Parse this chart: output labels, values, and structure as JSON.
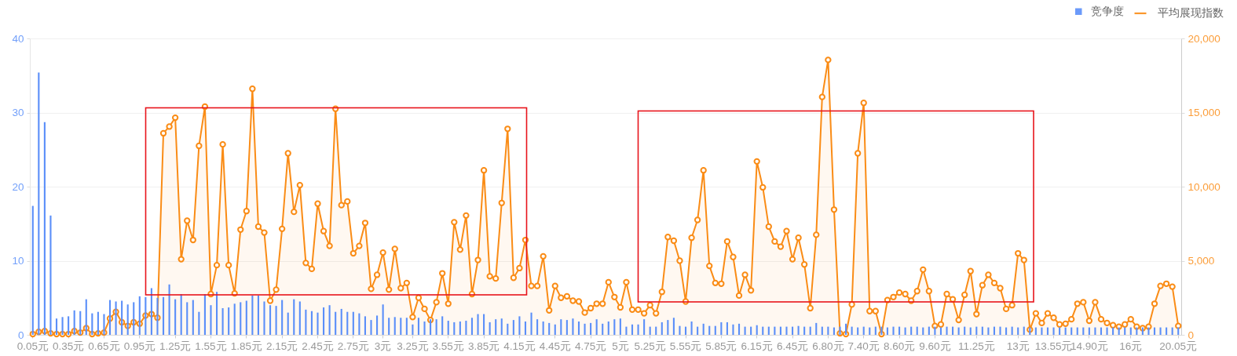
{
  "chart_data": {
    "type": "bar",
    "categories": [
      "0.05元",
      null,
      null,
      null,
      null,
      null,
      "0.35元",
      null,
      null,
      null,
      null,
      null,
      "0.65元",
      null,
      null,
      null,
      null,
      null,
      "0.95元",
      null,
      null,
      null,
      null,
      null,
      "1.25元",
      null,
      null,
      null,
      null,
      null,
      "1.55元",
      null,
      null,
      null,
      null,
      null,
      "1.85元",
      null,
      null,
      null,
      null,
      null,
      "2.15元",
      null,
      null,
      null,
      null,
      null,
      "2.45元",
      null,
      null,
      null,
      null,
      null,
      "2.75元",
      null,
      null,
      null,
      null,
      "3元",
      null,
      null,
      null,
      null,
      "3.25元",
      null,
      null,
      null,
      null,
      null,
      "3.55元",
      null,
      null,
      null,
      null,
      null,
      "3.85元",
      null,
      null,
      null,
      null,
      null,
      "4.15元",
      null,
      null,
      null,
      null,
      null,
      "4.45元",
      null,
      null,
      null,
      null,
      null,
      "4.75元",
      null,
      null,
      null,
      null,
      "5元",
      null,
      null,
      null,
      null,
      "5.25元",
      null,
      null,
      null,
      null,
      null,
      "5.55元",
      null,
      null,
      null,
      null,
      null,
      "5.85元",
      null,
      null,
      null,
      null,
      null,
      "6.15元",
      null,
      null,
      null,
      null,
      null,
      "6.45元",
      null,
      null,
      null,
      null,
      null,
      "6.80元",
      null,
      null,
      null,
      null,
      null,
      "7.40元",
      null,
      null,
      null,
      null,
      null,
      "8.60元",
      null,
      null,
      null,
      null,
      null,
      "9.60元",
      null,
      null,
      null,
      null,
      null,
      null,
      "11.25元",
      null,
      null,
      null,
      null,
      null,
      null,
      "13元",
      null,
      null,
      null,
      null,
      null,
      "13.55元",
      null,
      null,
      null,
      null,
      null,
      "14.90元",
      null,
      null,
      null,
      null,
      null,
      null,
      "16元",
      null,
      null,
      null,
      null,
      null,
      null,
      null,
      "20.05元"
    ],
    "series": [
      {
        "name": "竞争度",
        "color": "#5b8ff9",
        "values": [
          17.4,
          35.4,
          28.7,
          16.1,
          2.2,
          2.4,
          2.5,
          3.3,
          3.2,
          4.8,
          2.9,
          3.1,
          2.8,
          4.7,
          4.5,
          4.6,
          4.1,
          4.4,
          5.2,
          5.1,
          6.3,
          5.0,
          5.1,
          6.8,
          4.8,
          5.5,
          4.4,
          4.7,
          3.1,
          5.5,
          4.0,
          5.8,
          3.6,
          3.7,
          4.2,
          4.4,
          4.6,
          5.3,
          5.3,
          4.5,
          4.0,
          3.9,
          4.7,
          3.0,
          4.8,
          4.5,
          3.4,
          3.2,
          3.0,
          3.7,
          4.0,
          3.1,
          3.5,
          3.1,
          3.1,
          2.9,
          2.5,
          2.0,
          2.6,
          4.1,
          2.3,
          2.4,
          2.3,
          2.3,
          1.4,
          2.3,
          1.8,
          2.1,
          2.1,
          2.5,
          1.9,
          1.7,
          1.8,
          1.9,
          2.3,
          2.8,
          2.8,
          1.7,
          2.1,
          2.2,
          1.5,
          2.0,
          2.5,
          1.8,
          3.0,
          2.1,
          1.8,
          1.6,
          1.4,
          2.1,
          2.0,
          2.2,
          1.8,
          1.5,
          1.6,
          2.1,
          1.5,
          1.8,
          2.1,
          2.2,
          1.1,
          1.4,
          1.4,
          2.1,
          1.1,
          1.1,
          1.7,
          2.0,
          2.3,
          1.2,
          1.1,
          1.8,
          1.1,
          1.5,
          1.2,
          1.2,
          1.7,
          1.7,
          1.4,
          1.5,
          1.1,
          1.1,
          1.3,
          1.1,
          1.1,
          1.1,
          1.1,
          1.1,
          1.1,
          1.2,
          1.1,
          1.1,
          1.6,
          1.1,
          1.1,
          1.0,
          1.1,
          1.5,
          1.1,
          1.0,
          1.1,
          1.0,
          1.1,
          1.1,
          1.0,
          1.1,
          1.1,
          1.0,
          1.1,
          1.1,
          1.0,
          1.1,
          1.1,
          1.0,
          1.1,
          1.1,
          1.0,
          1.1,
          1.0,
          1.1,
          1.1,
          1.0,
          1.1,
          1.1,
          1.0,
          1.1,
          1.0,
          1.1,
          1.0,
          1.0,
          1.0,
          1.0,
          1.0,
          1.0,
          1.0,
          1.0,
          1.0,
          1.0,
          1.0,
          1.0,
          1.0,
          1.0,
          1.0,
          1.0,
          1.0,
          1.0,
          1.0,
          1.0,
          1.0,
          1.0,
          1.0,
          1.0,
          1.0,
          1.0
        ]
      },
      {
        "name": "平均展现指数",
        "type": "area",
        "axis": "y2",
        "color": "#fa8c16",
        "values": [
          50,
          200,
          250,
          100,
          50,
          50,
          50,
          250,
          150,
          450,
          50,
          100,
          150,
          1100,
          1550,
          850,
          600,
          850,
          750,
          1300,
          1400,
          1150,
          13600,
          14050,
          14650,
          5100,
          7700,
          6400,
          12750,
          15400,
          2750,
          4700,
          12850,
          4700,
          2800,
          7100,
          8350,
          16600,
          7300,
          6900,
          2300,
          3050,
          7150,
          12250,
          8300,
          10100,
          4850,
          4450,
          8850,
          7000,
          6000,
          15250,
          8750,
          9000,
          5500,
          6000,
          7550,
          3100,
          4050,
          5550,
          3050,
          5800,
          3150,
          3500,
          1200,
          2500,
          1750,
          1000,
          2200,
          4150,
          2100,
          7600,
          5750,
          8050,
          2750,
          5050,
          11100,
          3950,
          3800,
          8900,
          13900,
          3850,
          4500,
          6400,
          3300,
          3300,
          5300,
          1650,
          3300,
          2500,
          2600,
          2300,
          2250,
          1500,
          1800,
          2100,
          2100,
          3550,
          2550,
          1850,
          3550,
          1700,
          1700,
          1450,
          2000,
          1450,
          2900,
          6600,
          6350,
          5000,
          2250,
          6550,
          7750,
          11100,
          4650,
          3500,
          3450,
          6300,
          5250,
          2650,
          4050,
          3000,
          11700,
          9950,
          7300,
          6300,
          5950,
          7000,
          5100,
          6550,
          4750,
          1800,
          6750,
          16050,
          18550,
          8450,
          100,
          50,
          2050,
          12250,
          15650,
          1600,
          1600,
          50,
          2350,
          2550,
          2850,
          2750,
          2300,
          2950,
          4400,
          2950,
          600,
          700,
          2750,
          2400,
          1000,
          2700,
          4300,
          1400,
          3350,
          4050,
          3500,
          3150,
          1750,
          2000,
          5500,
          5050,
          350,
          1450,
          800,
          1450,
          1150,
          700,
          750,
          1050,
          2100,
          2200,
          950,
          2200,
          1050,
          800,
          650,
          550,
          700,
          1050,
          550,
          450,
          550,
          2100,
          3300,
          3450,
          3250,
          600
        ]
      }
    ],
    "ylim": [
      0,
      40
    ],
    "yticks": [
      0,
      10,
      20,
      30,
      40
    ],
    "y2lim": [
      0,
      20000
    ],
    "y2ticks": [
      0,
      {
        "value": 5000,
        "label": "5,000"
      },
      {
        "value": 10000,
        "label": "10,000"
      },
      {
        "value": 15000,
        "label": "15,000"
      },
      {
        "value": 20000,
        "label": "20,000"
      }
    ],
    "grid": "y",
    "legend": "top right",
    "marker": "circle"
  }
}
